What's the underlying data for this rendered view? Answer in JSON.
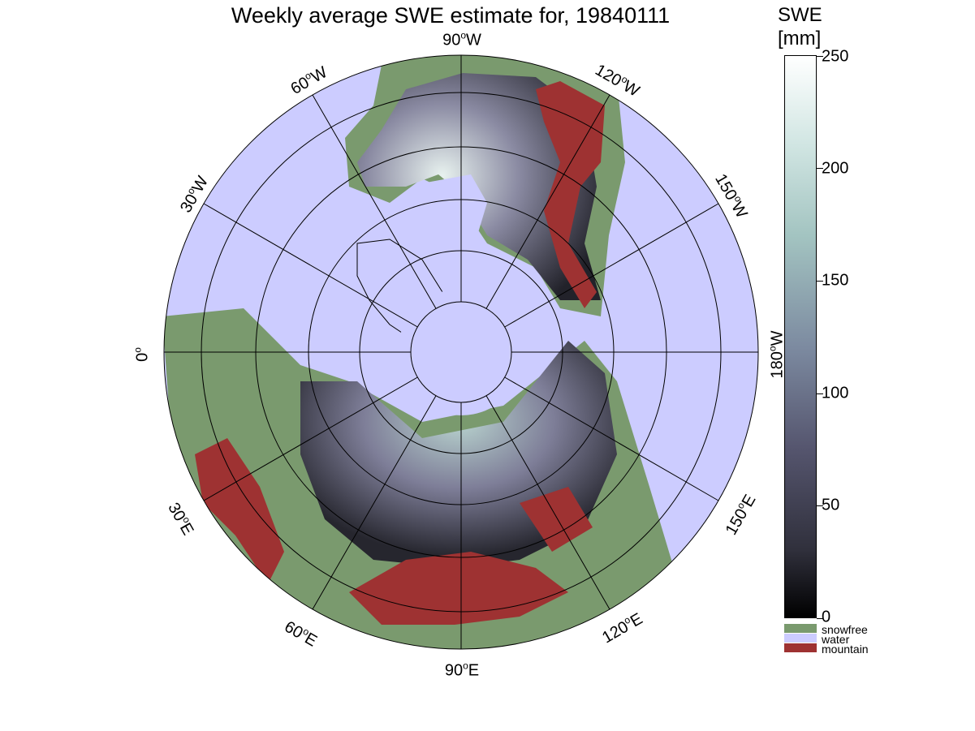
{
  "title": "Weekly average SWE estimate for, 19840111",
  "map": {
    "projection": "north-polar-stereographic",
    "longitude_labels": [
      {
        "id": "90w",
        "deg": "90",
        "hem": "W"
      },
      {
        "id": "60w",
        "deg": "60",
        "hem": "W"
      },
      {
        "id": "120w",
        "deg": "120",
        "hem": "W"
      },
      {
        "id": "30w",
        "deg": "30",
        "hem": "W"
      },
      {
        "id": "150w",
        "deg": "150",
        "hem": "W"
      },
      {
        "id": "0",
        "deg": "0",
        "hem": ""
      },
      {
        "id": "180w",
        "deg": "180",
        "hem": "W"
      },
      {
        "id": "30e",
        "deg": "30",
        "hem": "E"
      },
      {
        "id": "150e",
        "deg": "150",
        "hem": "E"
      },
      {
        "id": "60e",
        "deg": "60",
        "hem": "E"
      },
      {
        "id": "120e",
        "deg": "120",
        "hem": "E"
      },
      {
        "id": "90e",
        "deg": "90",
        "hem": "E"
      }
    ],
    "colors": {
      "water": "#ccccff",
      "snowfree": "#7a9a6e",
      "mountain": "#9e3232",
      "swe_low": "#1a1a22",
      "swe_mid": "#6b6b84",
      "swe_high": "#c9e2dd"
    }
  },
  "colorbar": {
    "title_line1": "SWE",
    "title_line2": "[mm]",
    "min": 0,
    "max": 250,
    "ticks": [
      "0",
      "50",
      "100",
      "150",
      "200",
      "250"
    ],
    "categories": [
      {
        "label": "snowfree",
        "color": "#7a9a6e"
      },
      {
        "label": "water",
        "color": "#ccccff"
      },
      {
        "label": "mountain",
        "color": "#9e3232"
      }
    ]
  }
}
